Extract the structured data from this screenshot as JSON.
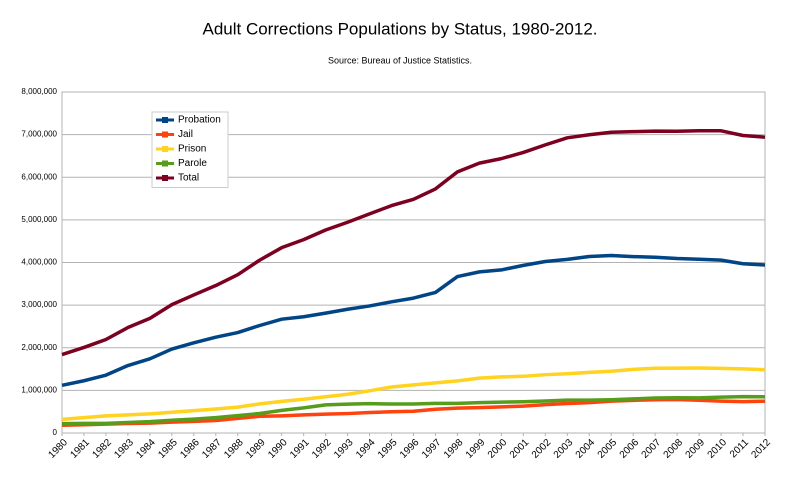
{
  "chart_data": {
    "type": "line",
    "title": "Adult Corrections Populations by Status, 1980-2012.",
    "subtitle": "Source: Bureau of Justice Statistics.",
    "categories": [
      "1980",
      "1981",
      "1982",
      "1983",
      "1984",
      "1985",
      "1986",
      "1987",
      "1988",
      "1989",
      "1990",
      "1991",
      "1992",
      "1993",
      "1994",
      "1995",
      "1996",
      "1997",
      "1998",
      "1999",
      "2000",
      "2001",
      "2002",
      "2003",
      "2004",
      "2005",
      "2006",
      "2007",
      "2008",
      "2009",
      "2010",
      "2011",
      "2012"
    ],
    "ylim": [
      0,
      8000000
    ],
    "yticks": [
      0,
      {
        "value": 1000000,
        "label": "1,000,000"
      },
      {
        "value": 2000000,
        "label": "2,000,000"
      },
      {
        "value": 3000000,
        "label": "3,000,000"
      },
      {
        "value": 4000000,
        "label": "4,000,000"
      },
      {
        "value": 5000000,
        "label": "5,000,000"
      },
      {
        "value": 6000000,
        "label": "6,000,000"
      },
      {
        "value": 7000000,
        "label": "7,000,000"
      },
      {
        "value": 8000000,
        "label": "8,000,000"
      }
    ],
    "grid": true,
    "legend": "upper-left",
    "series": [
      {
        "name": "Probation",
        "color": "#004586",
        "values": [
          1118000,
          1226000,
          1357000,
          1583000,
          1741000,
          1969000,
          2115000,
          2247000,
          2356000,
          2522000,
          2670000,
          2728000,
          2812000,
          2903000,
          2981000,
          3078000,
          3165000,
          3297000,
          3670000,
          3780000,
          3826000,
          3932000,
          4024000,
          4074000,
          4141000,
          4163000,
          4138000,
          4124000,
          4093000,
          4076000,
          4056000,
          3971000,
          3942000
        ]
      },
      {
        "name": " Jail",
        "color": "#ff420e",
        "values": [
          182000,
          195000,
          208000,
          222000,
          233000,
          255000,
          273000,
          294000,
          342000,
          393000,
          403000,
          424000,
          442000,
          456000,
          480000,
          499000,
          510000,
          558000,
          584000,
          596000,
          614000,
          631000,
          665000,
          691000,
          714000,
          748000,
          766000,
          780000,
          786000,
          767000,
          749000,
          736000,
          745000
        ]
      },
      {
        "name": " Prison",
        "color": "#ffd320",
        "values": [
          320000,
          360000,
          403000,
          424000,
          448000,
          488000,
          526000,
          563000,
          608000,
          683000,
          743000,
          793000,
          851000,
          909000,
          990000,
          1079000,
          1128000,
          1177000,
          1224000,
          1287000,
          1316000,
          1330000,
          1368000,
          1390000,
          1421000,
          1448000,
          1493000,
          1518000,
          1523000,
          1525000,
          1517000,
          1504000,
          1484000
        ]
      },
      {
        "name": " Parole",
        "color": "#579d1c",
        "values": [
          220000,
          226000,
          225000,
          246000,
          267000,
          300000,
          326000,
          362000,
          408000,
          457000,
          531000,
          590000,
          659000,
          676000,
          690000,
          679000,
          680000,
          695000,
          696000,
          714000,
          724000,
          732000,
          751000,
          770000,
          772000,
          781000,
          800000,
          821000,
          826000,
          824000,
          841000,
          854000,
          851000
        ]
      },
      {
        "name": " Total",
        "color": "#7e0021",
        "values": [
          1840000,
          2007000,
          2193000,
          2475000,
          2689000,
          3012000,
          3239000,
          3460000,
          3714000,
          4056000,
          4348000,
          4536000,
          4763000,
          4944000,
          5141000,
          5335000,
          5483000,
          5726000,
          6126000,
          6331000,
          6437000,
          6582000,
          6759000,
          6925000,
          6997000,
          7056000,
          7070000,
          7083000,
          7080000,
          7090000,
          7090000,
          6980000,
          6940000
        ]
      }
    ]
  }
}
